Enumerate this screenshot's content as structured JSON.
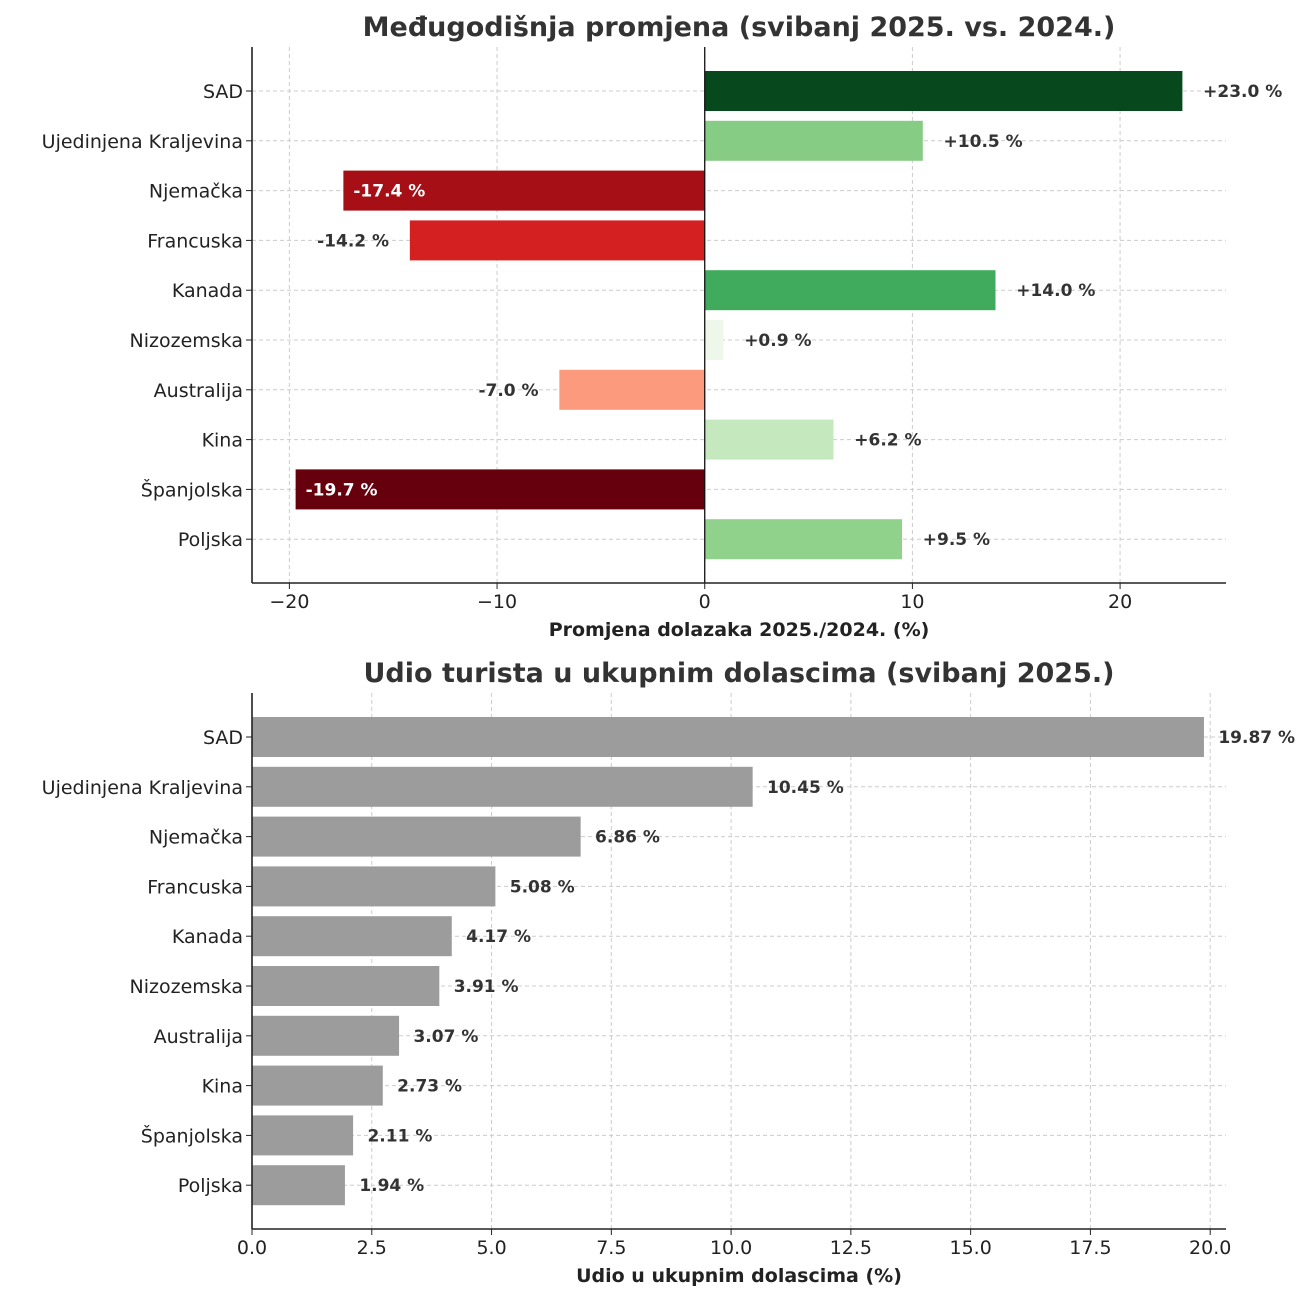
{
  "chart_data": [
    {
      "type": "bar",
      "orientation": "horizontal",
      "title": "Međugodišnja promjena (svibanj 2025. vs. 2024.)",
      "xlabel": "Promjena dolazaka 2025./2024. (%)",
      "ylabel": "",
      "categories": [
        "SAD",
        "Ujedinjena Kraljevina",
        "Njemačka",
        "Francuska",
        "Kanada",
        "Nizozemska",
        "Australija",
        "Kina",
        "Španjolska",
        "Poljska"
      ],
      "values": [
        23.0,
        10.5,
        -17.4,
        -14.2,
        14.0,
        0.9,
        -7.0,
        6.2,
        -19.7,
        9.5
      ],
      "data_labels": [
        "+23.0 %",
        "+10.5 %",
        "-17.4 %",
        "-14.2 %",
        "+14.0 %",
        "+0.9 %",
        "-7.0 %",
        "+6.2 %",
        "-19.7 %",
        "+9.5 %"
      ],
      "colors": [
        "#08481d",
        "#86cc85",
        "#a50f15",
        "#d42020",
        "#41ab5d",
        "#eef8ea",
        "#fb9a7c",
        "#c6e8bf",
        "#67000d",
        "#90d28b"
      ],
      "xlim": [
        -21.8,
        25.1
      ],
      "xticks": [
        -20,
        -10,
        0,
        10,
        20
      ],
      "xtick_labels": [
        "−20",
        "−10",
        "0",
        "10",
        "20"
      ],
      "grid": true
    },
    {
      "type": "bar",
      "orientation": "horizontal",
      "title": "Udio turista u ukupnim dolascima (svibanj 2025.)",
      "xlabel": "Udio u ukupnim dolascima (%)",
      "ylabel": "",
      "categories": [
        "SAD",
        "Ujedinjena Kraljevina",
        "Njemačka",
        "Francuska",
        "Kanada",
        "Nizozemska",
        "Australija",
        "Kina",
        "Španjolska",
        "Poljska"
      ],
      "values": [
        19.87,
        10.45,
        6.86,
        5.08,
        4.17,
        3.91,
        3.07,
        2.73,
        2.11,
        1.94
      ],
      "data_labels": [
        "19.87 %",
        "10.45 %",
        "6.86 %",
        "5.08 %",
        "4.17 %",
        "3.91 %",
        "3.07 %",
        "2.73 %",
        "2.11 %",
        "1.94 %"
      ],
      "colors": [
        "#9c9c9c"
      ],
      "xlim": [
        0,
        20.33
      ],
      "xticks": [
        0,
        2.5,
        5,
        7.5,
        10,
        12.5,
        15,
        17.5,
        20
      ],
      "xtick_labels": [
        "0.0",
        "2.5",
        "5.0",
        "7.5",
        "10.0",
        "12.5",
        "15.0",
        "17.5",
        "20.0"
      ],
      "grid": true
    }
  ]
}
